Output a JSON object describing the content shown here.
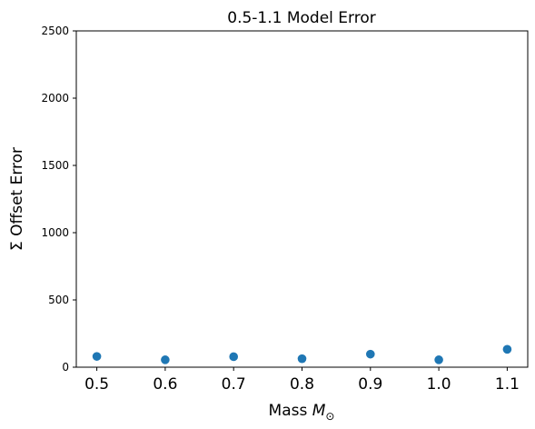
{
  "chart_data": {
    "type": "scatter",
    "title": "0.5-1.1 Model Error",
    "xlabel": "Mass M⊙",
    "ylabel": "Σ Offset Error",
    "xlim": [
      0.47,
      1.13
    ],
    "ylim": [
      0,
      2500
    ],
    "xticks": [
      0.5,
      0.6,
      0.7,
      0.8,
      0.9,
      1.0,
      1.1
    ],
    "xtick_labels": [
      "0.5",
      "0.6",
      "0.7",
      "0.8",
      "0.9",
      "1.0",
      "1.1"
    ],
    "yticks": [
      0,
      500,
      1000,
      1500,
      2000,
      2500
    ],
    "ytick_labels": [
      "0",
      "500",
      "1000",
      "1500",
      "2000",
      "2500"
    ],
    "grid": false,
    "legend": "none",
    "series": [
      {
        "color": "#1f77b4",
        "x": [
          0.5,
          0.6,
          0.7,
          0.8,
          0.9,
          1.0,
          1.1
        ],
        "y": [
          80,
          55,
          78,
          63,
          97,
          55,
          133
        ]
      }
    ]
  }
}
